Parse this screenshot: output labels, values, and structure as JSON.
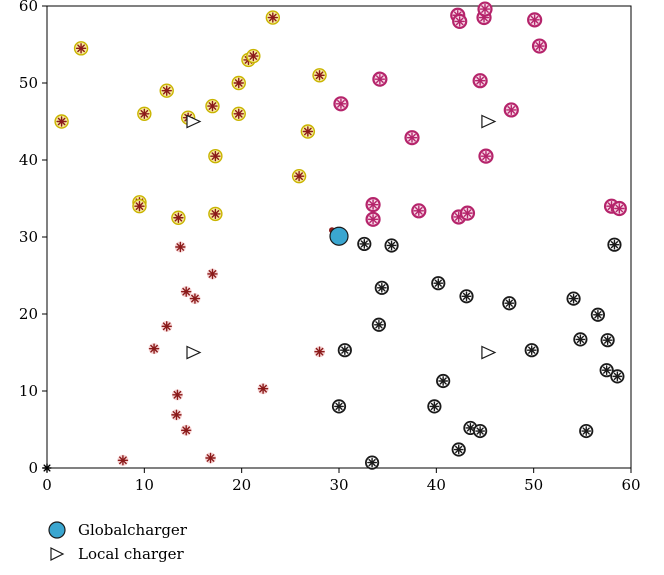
{
  "chart_data": {
    "type": "scatter",
    "title": "",
    "xlabel": "",
    "ylabel": "",
    "xlim": [
      0,
      60
    ],
    "ylim": [
      0,
      60
    ],
    "x_ticks": [
      0,
      10,
      20,
      30,
      40,
      50,
      60
    ],
    "y_ticks": [
      0,
      10,
      20,
      30,
      40,
      50,
      60
    ],
    "grid": false,
    "legend_placement": "below-left",
    "colors": {
      "yellow_ring": "#c9b400",
      "yellow_fill": "#f7e99a",
      "magenta_ring": "#b5246b",
      "magenta_fill": "#f7d8e6",
      "black_ring": "#1a1a1a",
      "red_fill": "#f6d3d3",
      "star": "#8b1a1a",
      "global": "#3aa6d0"
    },
    "series": [
      {
        "group": "top-left",
        "marker": "yellow-ring",
        "points": [
          [
            1.5,
            45
          ],
          [
            3.5,
            54.5
          ],
          [
            9.5,
            34.5
          ],
          [
            9.5,
            34
          ],
          [
            10,
            46
          ],
          [
            12.3,
            49
          ],
          [
            13.5,
            32.5
          ],
          [
            14.5,
            45.5
          ],
          [
            17,
            47
          ],
          [
            17.3,
            40.5
          ],
          [
            17.3,
            33
          ],
          [
            19.7,
            46
          ],
          [
            19.7,
            50
          ],
          [
            20.7,
            53
          ],
          [
            21.2,
            53.5
          ],
          [
            23.2,
            58.5
          ],
          [
            25.9,
            37.9
          ],
          [
            26.8,
            43.7
          ],
          [
            28,
            51
          ]
        ]
      },
      {
        "group": "top-right",
        "marker": "magenta-ring",
        "points": [
          [
            30.2,
            47.3
          ],
          [
            33.5,
            34.2
          ],
          [
            33.5,
            32.3
          ],
          [
            34.2,
            50.5
          ],
          [
            37.5,
            42.9
          ],
          [
            38.2,
            33.4
          ],
          [
            42.2,
            58.8
          ],
          [
            42.4,
            58
          ],
          [
            42.3,
            32.6
          ],
          [
            43.2,
            33.1
          ],
          [
            44.5,
            50.3
          ],
          [
            44.9,
            58.5
          ],
          [
            45,
            59.6
          ],
          [
            45.1,
            40.5
          ],
          [
            47.7,
            46.5
          ],
          [
            50.1,
            58.2
          ],
          [
            50.6,
            54.8
          ],
          [
            58,
            34
          ],
          [
            58.8,
            33.7
          ]
        ]
      },
      {
        "group": "bottom-left",
        "marker": "red-star",
        "points": [
          [
            7.8,
            1
          ],
          [
            11,
            15.5
          ],
          [
            12.3,
            18.4
          ],
          [
            13.4,
            9.5
          ],
          [
            13.3,
            6.9
          ],
          [
            13.7,
            28.7
          ],
          [
            14.3,
            4.9
          ],
          [
            14.3,
            22.9
          ],
          [
            15.2,
            22
          ],
          [
            16.8,
            1.3
          ],
          [
            17,
            25.2
          ],
          [
            22.2,
            10.3
          ],
          [
            28,
            15.1
          ]
        ]
      },
      {
        "group": "bottom-right",
        "marker": "black-ring",
        "points": [
          [
            30,
            8
          ],
          [
            30.6,
            15.3
          ],
          [
            32.6,
            29.1
          ],
          [
            33.4,
            0.7
          ],
          [
            34.1,
            18.6
          ],
          [
            34.4,
            23.4
          ],
          [
            35.4,
            28.9
          ],
          [
            39.8,
            8
          ],
          [
            40.2,
            24
          ],
          [
            40.7,
            11.3
          ],
          [
            42.3,
            2.4
          ],
          [
            43.1,
            22.3
          ],
          [
            43.5,
            5.2
          ],
          [
            44.5,
            4.8
          ],
          [
            47.5,
            21.4
          ],
          [
            49.8,
            15.3
          ],
          [
            54.1,
            22
          ],
          [
            54.8,
            16.7
          ],
          [
            55.4,
            4.8
          ],
          [
            56.6,
            19.9
          ],
          [
            57.5,
            12.7
          ],
          [
            57.6,
            16.6
          ],
          [
            58.3,
            29
          ],
          [
            58.6,
            11.9
          ]
        ]
      },
      {
        "group": "base-station",
        "marker": "black-star",
        "points": [
          [
            0,
            0
          ]
        ]
      }
    ],
    "global_charger": {
      "label": "Globalcharger",
      "point": [
        30,
        30.1
      ]
    },
    "local_chargers": {
      "label": "Local charger",
      "points": [
        [
          15,
          45
        ],
        [
          45.3,
          45
        ],
        [
          15,
          15
        ],
        [
          45.3,
          15
        ]
      ]
    }
  }
}
